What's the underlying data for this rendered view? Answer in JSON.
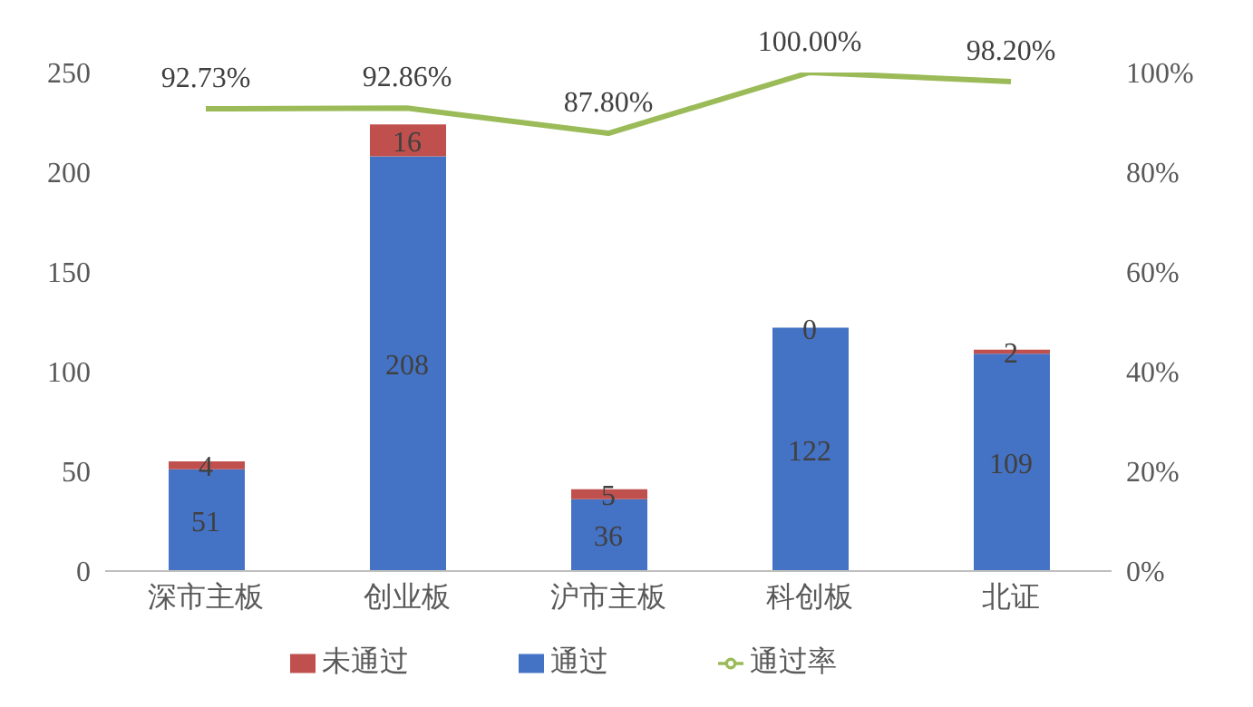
{
  "chart_data": {
    "type": "bar",
    "stacked": true,
    "categories": [
      "深市主板",
      "创业板",
      "沪市主板",
      "科创板",
      "北证"
    ],
    "series": [
      {
        "name": "通过",
        "color": "#4472c4",
        "values": [
          51,
          208,
          36,
          122,
          109
        ],
        "value_labels": [
          "51",
          "208",
          "36",
          "122",
          "109"
        ]
      },
      {
        "name": "未通过",
        "color": "#c0504d",
        "values": [
          4,
          16,
          5,
          0,
          2
        ],
        "value_labels": [
          "4",
          "16",
          "5",
          "0",
          "2"
        ]
      },
      {
        "name": "通过率",
        "type": "line",
        "axis": "y2",
        "color": "#9bbb59",
        "values": [
          92.73,
          92.86,
          87.8,
          100,
          98.2
        ],
        "value_labels": [
          "92.73%",
          "92.86%",
          "87.80%",
          "100.00%",
          "98.20%"
        ]
      }
    ],
    "ylim": [
      0,
      250
    ],
    "yticks": [
      0,
      50,
      100,
      150,
      200,
      250
    ],
    "y2lim": [
      0,
      100
    ],
    "y2ticks": [
      {
        "value": 0,
        "label": "0%"
      },
      {
        "value": 20,
        "label": "20%"
      },
      {
        "value": 40,
        "label": "40%"
      },
      {
        "value": 60,
        "label": "60%"
      },
      {
        "value": 80,
        "label": "80%"
      },
      {
        "value": 100,
        "label": "100%"
      }
    ],
    "grid": false,
    "legend": "bottom",
    "marker": "none"
  }
}
